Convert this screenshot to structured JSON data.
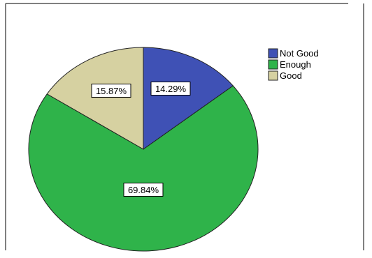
{
  "chart_data": {
    "type": "pie",
    "start_angle_deg": 0,
    "direction": "clockwise",
    "slices": [
      {
        "name": "Not Good",
        "value": 14.29,
        "label": "14.29%",
        "color": "#3f51b5"
      },
      {
        "name": "Enough",
        "value": 69.84,
        "label": "69.84%",
        "color": "#2fb34a"
      },
      {
        "name": "Good",
        "value": 15.87,
        "label": "15.87%",
        "color": "#d6d1a1"
      }
    ],
    "legend": {
      "position": "top-right",
      "entries": [
        "Not Good",
        "Enough",
        "Good"
      ]
    }
  }
}
